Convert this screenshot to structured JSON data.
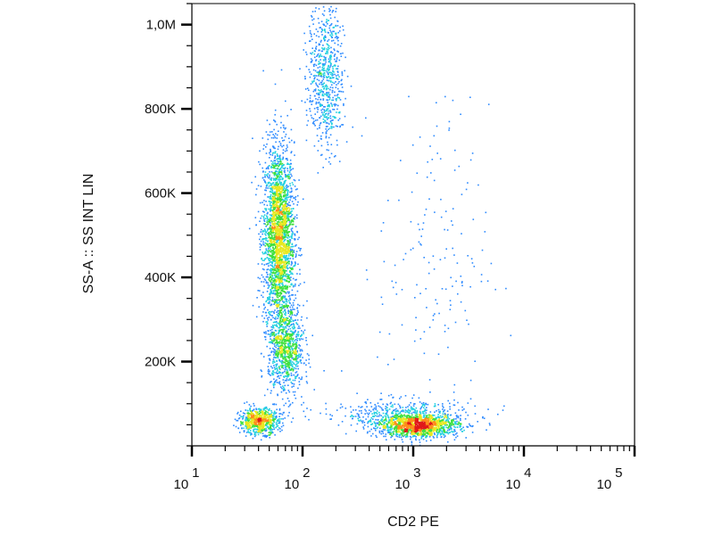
{
  "chart_data": {
    "type": "scatter",
    "subtype": "flow-cytometry density dot plot",
    "xlabel": "CD2 PE",
    "ylabel": "SS-A :: SS INT LIN",
    "x_scale": "log",
    "xlim": [
      10,
      100000
    ],
    "y_scale": "linear",
    "ylim": [
      0,
      1050000
    ],
    "grid": false,
    "legend": "none",
    "x_ticks": [
      {
        "value": 10,
        "base": "10",
        "exp": "1"
      },
      {
        "value": 100,
        "base": "10",
        "exp": "2"
      },
      {
        "value": 1000,
        "base": "10",
        "exp": "3"
      },
      {
        "value": 10000,
        "base": "10",
        "exp": "4"
      },
      {
        "value": 100000,
        "base": "10",
        "exp": "5"
      }
    ],
    "y_ticks": [
      {
        "value": 200000,
        "label": "200K"
      },
      {
        "value": 400000,
        "label": "400K"
      },
      {
        "value": 600000,
        "label": "600K"
      },
      {
        "value": 800000,
        "label": "800K"
      },
      {
        "value": 1000000,
        "label": "1,0M"
      }
    ],
    "density_colors": [
      "#1f1fd6",
      "#2e8bff",
      "#22d0e0",
      "#3ee03e",
      "#e8e820",
      "#ff8c1a",
      "#e01a1a"
    ],
    "populations": [
      {
        "x": 60,
        "y": 500000,
        "sx_log": 0.07,
        "sy": 110000,
        "n": 2600
      },
      {
        "x": 70,
        "y": 230000,
        "sx_log": 0.08,
        "sy": 55000,
        "n": 900
      },
      {
        "x": 40,
        "y": 60000,
        "sx_log": 0.09,
        "sy": 15000,
        "n": 700
      },
      {
        "x": 1100,
        "y": 50000,
        "sx_log": 0.18,
        "sy": 14000,
        "n": 1500
      },
      {
        "x": 700,
        "y": 80000,
        "sx_log": 0.35,
        "sy": 18000,
        "n": 350
      },
      {
        "x": 160,
        "y": 880000,
        "sx_log": 0.08,
        "sy": 90000,
        "n": 700
      },
      {
        "x": 1500,
        "y": 450000,
        "sx_log": 0.25,
        "sy": 180000,
        "n": 160
      }
    ]
  }
}
